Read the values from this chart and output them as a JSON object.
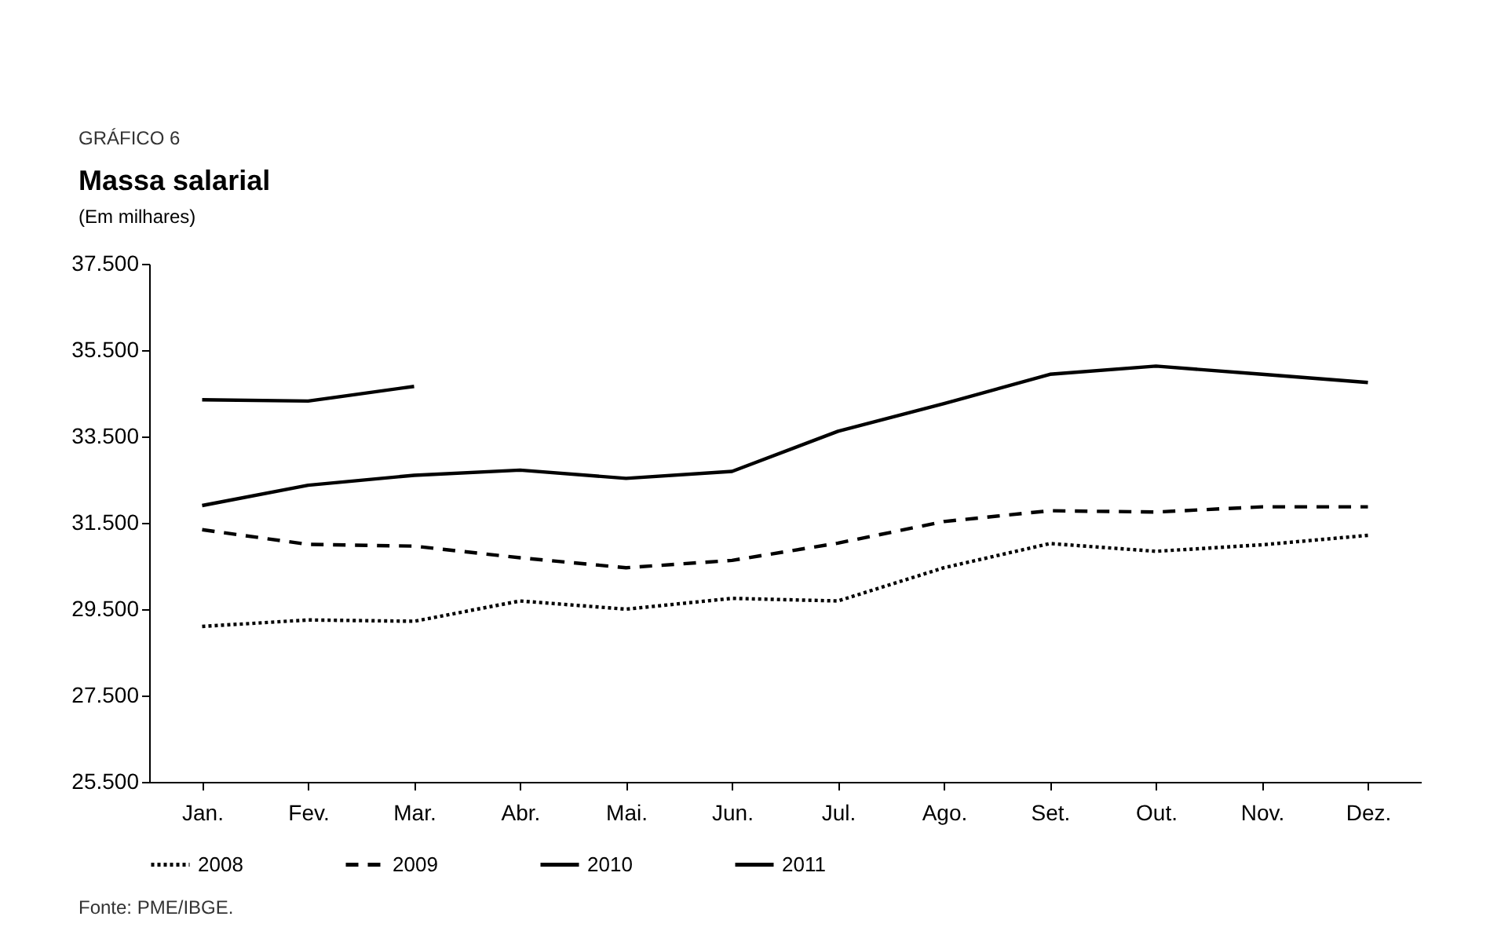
{
  "chart_data": {
    "type": "line",
    "title": "Massa salarial",
    "subtitle": "(Em milhares)",
    "annotations": [
      "GRÁFICO 6",
      "Fonte: PME/IBGE."
    ],
    "categories": [
      "Jan.",
      "Fev.",
      "Mar.",
      "Abr.",
      "Mai.",
      "Jun.",
      "Jul.",
      "Ago.",
      "Set.",
      "Out.",
      "Nov.",
      "Dez."
    ],
    "series": [
      {
        "name": "2008",
        "color": "#000000",
        "line_style": "dotted",
        "values": [
          29100,
          29250,
          29220,
          29690,
          29500,
          29750,
          29690,
          30460,
          31020,
          30840,
          30990,
          31210
        ]
      },
      {
        "name": "2009",
        "color": "#000000",
        "line_style": "dashed",
        "values": [
          31340,
          31000,
          30960,
          30690,
          30460,
          30630,
          31030,
          31530,
          31780,
          31750,
          31870,
          31870
        ]
      },
      {
        "name": "2010",
        "color": "#000000",
        "line_style": "solid",
        "values": [
          31900,
          32370,
          32600,
          32720,
          32530,
          32690,
          33620,
          34260,
          34940,
          35130,
          34940,
          34750
        ]
      },
      {
        "name": "2011",
        "color": "#000000",
        "line_style": "solid",
        "values": [
          34350,
          34320,
          34660,
          null,
          null,
          null,
          null,
          null,
          null,
          null,
          null,
          null
        ]
      }
    ],
    "ylim": [
      25500,
      37500
    ],
    "yticks": [
      {
        "value": 25500,
        "label": "25.500"
      },
      {
        "value": 27500,
        "label": "27.500"
      },
      {
        "value": 29500,
        "label": "29.500"
      },
      {
        "value": 31500,
        "label": "31.500"
      },
      {
        "value": 33500,
        "label": "33.500"
      },
      {
        "value": 35500,
        "label": "35.500"
      },
      {
        "value": 37500,
        "label": "37.500"
      }
    ],
    "grid": false,
    "legend": "bottom",
    "marker": "none"
  }
}
